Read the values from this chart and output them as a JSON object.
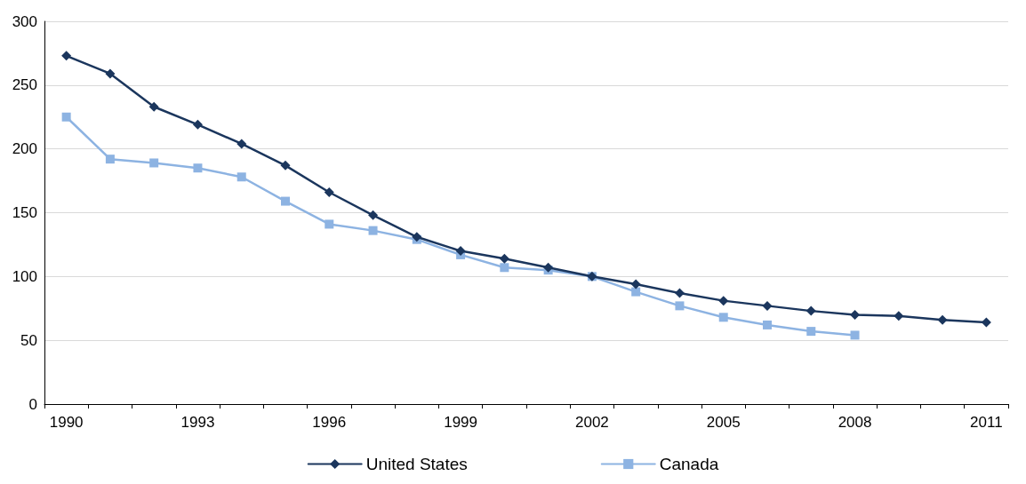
{
  "chart_data": {
    "type": "line",
    "categories": [
      "1990",
      null,
      null,
      "1993",
      null,
      null,
      "1996",
      null,
      null,
      "1999",
      null,
      null,
      "2002",
      null,
      null,
      "2005",
      null,
      null,
      "2008",
      null,
      null,
      "2011"
    ],
    "series": [
      {
        "name": "United States",
        "color": "#1b365d",
        "marker": "diamond",
        "values": [
          273,
          259,
          233,
          219,
          204,
          187,
          166,
          148,
          131,
          120,
          114,
          107,
          100,
          94,
          87,
          81,
          77,
          73,
          70,
          69,
          66,
          64
        ]
      },
      {
        "name": "Canada",
        "color": "#8db3e2",
        "marker": "square",
        "values": [
          225,
          192,
          189,
          185,
          178,
          159,
          141,
          136,
          129,
          117,
          107,
          105,
          100,
          88,
          77,
          68,
          62,
          57,
          54,
          null,
          null,
          null
        ]
      }
    ],
    "ylim": [
      0,
      300
    ],
    "yticks": [
      0,
      50,
      100,
      150,
      200,
      250,
      300
    ],
    "grid": "y",
    "legend": "bottom",
    "line_style": "solid"
  }
}
